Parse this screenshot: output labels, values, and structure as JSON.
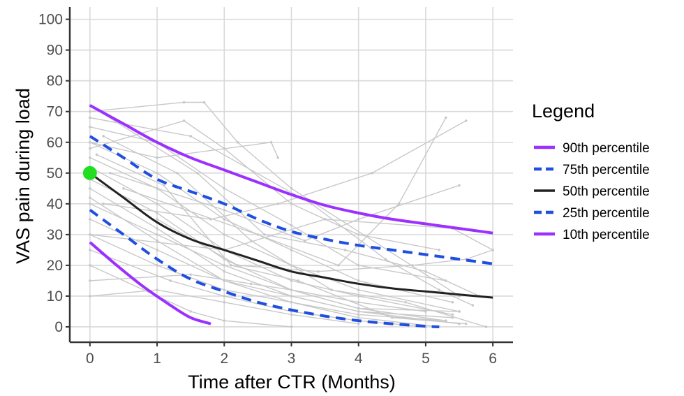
{
  "chart_data": {
    "type": "line",
    "title": "",
    "xlabel": "Time after CTR (Months)",
    "ylabel": "VAS pain during load",
    "xlim": [
      -0.3,
      6.3
    ],
    "ylim": [
      -5,
      104
    ],
    "xticks": [
      0,
      1,
      2,
      3,
      4,
      5,
      6
    ],
    "yticks": [
      0,
      10,
      20,
      30,
      40,
      50,
      60,
      70,
      80,
      90,
      100
    ],
    "grid": true,
    "legend": {
      "title": "Legend",
      "position": "right"
    },
    "start_point": {
      "x": 0,
      "y": 50,
      "color": "#22dd22"
    },
    "series": [
      {
        "name": "90th percentile",
        "color": "#9b30ff",
        "dash": "solid",
        "x": [
          0,
          0.5,
          1,
          1.5,
          2,
          2.5,
          3,
          3.5,
          4,
          4.5,
          5,
          5.5,
          6
        ],
        "y": [
          72,
          66,
          60,
          55,
          51,
          47,
          43,
          39.5,
          37,
          35,
          33.5,
          32,
          30.5
        ]
      },
      {
        "name": "75th percentile",
        "color": "#1f4fe0",
        "dash": "dashed",
        "x": [
          0,
          0.5,
          1,
          1.5,
          2,
          2.5,
          3,
          3.5,
          4,
          4.5,
          5,
          5.5,
          6
        ],
        "y": [
          62,
          55,
          48,
          44,
          40,
          35,
          31,
          28.5,
          26.5,
          25,
          23.5,
          22,
          20.5
        ]
      },
      {
        "name": "50th percentile",
        "color": "#222222",
        "dash": "solid",
        "x": [
          0,
          0.5,
          1,
          1.5,
          2,
          2.5,
          3,
          3.5,
          4,
          4.5,
          5,
          5.5,
          6
        ],
        "y": [
          50,
          42,
          34,
          28.5,
          25,
          21.5,
          18,
          16,
          14,
          12.5,
          11.5,
          10.5,
          9.5
        ]
      },
      {
        "name": "25th percentile",
        "color": "#1f4fe0",
        "dash": "dashed",
        "x": [
          0,
          0.5,
          1,
          1.5,
          2,
          2.5,
          3,
          3.5,
          4,
          4.5,
          5,
          5.2
        ],
        "y": [
          38,
          30,
          22,
          15.5,
          11.5,
          8,
          5.5,
          3.5,
          2,
          1,
          0.2,
          0
        ]
      },
      {
        "name": "10th percentile",
        "color": "#9b30ff",
        "dash": "solid",
        "x": [
          0,
          0.4,
          0.8,
          1.2,
          1.5,
          1.8
        ],
        "y": [
          27.5,
          20,
          13,
          7,
          3,
          1
        ]
      }
    ],
    "individual_trajectories": [
      [
        [
          0,
          70
        ],
        [
          1.4,
          73
        ],
        [
          1.7,
          73
        ],
        [
          2.2,
          60
        ],
        [
          3,
          45
        ],
        [
          5.5,
          10
        ]
      ],
      [
        [
          0,
          65
        ],
        [
          1,
          60
        ],
        [
          2,
          45
        ],
        [
          3,
          33
        ],
        [
          4,
          20
        ],
        [
          5.3,
          15
        ]
      ],
      [
        [
          0,
          60
        ],
        [
          1,
          50
        ],
        [
          2,
          35
        ],
        [
          3,
          25
        ],
        [
          4,
          15
        ],
        [
          5.4,
          8
        ]
      ],
      [
        [
          0,
          58
        ],
        [
          1.4,
          67
        ],
        [
          2,
          58
        ],
        [
          3,
          40
        ],
        [
          4,
          30
        ],
        [
          5.2,
          25
        ]
      ],
      [
        [
          0,
          55
        ],
        [
          1,
          45
        ],
        [
          2,
          30
        ],
        [
          3,
          20
        ],
        [
          4,
          12
        ],
        [
          5.5,
          5
        ]
      ],
      [
        [
          0,
          52
        ],
        [
          1,
          40
        ],
        [
          2,
          25
        ],
        [
          3,
          15
        ],
        [
          4,
          10
        ],
        [
          5.4,
          4
        ]
      ],
      [
        [
          0,
          48
        ],
        [
          1,
          37
        ],
        [
          2,
          22
        ],
        [
          3,
          12
        ],
        [
          4,
          6
        ],
        [
          5.3,
          2
        ]
      ],
      [
        [
          0,
          45
        ],
        [
          1,
          32
        ],
        [
          2,
          18
        ],
        [
          3,
          10
        ],
        [
          4,
          5
        ],
        [
          5.5,
          1
        ]
      ],
      [
        [
          0,
          42
        ],
        [
          1,
          28
        ],
        [
          2,
          15
        ],
        [
          3,
          8
        ],
        [
          4,
          3
        ],
        [
          5.2,
          0
        ]
      ],
      [
        [
          0,
          40
        ],
        [
          1,
          30
        ],
        [
          2,
          20
        ],
        [
          3,
          12
        ],
        [
          4,
          8
        ],
        [
          5,
          5
        ]
      ],
      [
        [
          0,
          35
        ],
        [
          1,
          25
        ],
        [
          2,
          15
        ],
        [
          3,
          10
        ],
        [
          4,
          5
        ],
        [
          5.4,
          3
        ]
      ],
      [
        [
          0,
          30
        ],
        [
          1,
          20
        ],
        [
          2,
          12
        ],
        [
          3,
          8
        ],
        [
          4,
          4
        ],
        [
          5.3,
          2
        ]
      ],
      [
        [
          0,
          25
        ],
        [
          1.2,
          15
        ],
        [
          2,
          10
        ],
        [
          3,
          5
        ],
        [
          4,
          2
        ],
        [
          5,
          0
        ]
      ],
      [
        [
          0,
          20
        ],
        [
          1,
          10
        ],
        [
          1.5,
          5
        ],
        [
          2,
          2
        ],
        [
          3,
          0
        ]
      ],
      [
        [
          0,
          15
        ],
        [
          1.5,
          17
        ],
        [
          2.4,
          14
        ],
        [
          3,
          12
        ],
        [
          4,
          6
        ],
        [
          5.5,
          5
        ]
      ],
      [
        [
          0,
          10
        ],
        [
          1,
          12
        ],
        [
          2,
          8
        ],
        [
          3,
          4
        ],
        [
          4,
          1
        ]
      ],
      [
        [
          0,
          60
        ],
        [
          1,
          55
        ],
        [
          2.7,
          60
        ],
        [
          2.8,
          55
        ]
      ],
      [
        [
          0.3,
          50
        ],
        [
          2,
          38
        ],
        [
          3.2,
          28
        ],
        [
          4,
          35
        ],
        [
          5.5,
          46
        ]
      ],
      [
        [
          0.5,
          45
        ],
        [
          2.5,
          30
        ],
        [
          3.7,
          20
        ],
        [
          4.6,
          40
        ],
        [
          5.3,
          68
        ]
      ],
      [
        [
          0.2,
          40
        ],
        [
          1.8,
          35
        ],
        [
          2.8,
          40
        ],
        [
          4.2,
          50
        ],
        [
          5.6,
          67
        ]
      ],
      [
        [
          0,
          30
        ],
        [
          2,
          25
        ],
        [
          3.5,
          35
        ],
        [
          5.4,
          32
        ],
        [
          6,
          25
        ]
      ],
      [
        [
          1,
          35
        ],
        [
          2.2,
          20
        ],
        [
          3.4,
          18
        ],
        [
          4.8,
          20
        ],
        [
          5.6,
          22
        ],
        [
          6,
          25
        ]
      ],
      [
        [
          0,
          68
        ],
        [
          1.5,
          62
        ],
        [
          3.3,
          40
        ],
        [
          4.4,
          22
        ],
        [
          5.2,
          12
        ],
        [
          5.7,
          7
        ]
      ],
      [
        [
          0,
          72
        ],
        [
          1.6,
          50
        ],
        [
          2.6,
          30
        ],
        [
          3.8,
          25
        ],
        [
          5,
          18
        ],
        [
          5.8,
          10
        ]
      ],
      [
        [
          0.1,
          56
        ],
        [
          1.1,
          46
        ],
        [
          2.1,
          20
        ],
        [
          3.1,
          15
        ],
        [
          4.5,
          3
        ],
        [
          5.6,
          1
        ]
      ],
      [
        [
          0.2,
          62
        ],
        [
          1.3,
          50
        ],
        [
          2.4,
          28
        ],
        [
          3.6,
          12
        ],
        [
          4.7,
          8
        ],
        [
          5.9,
          0
        ]
      ]
    ]
  },
  "colors": {
    "grid": "#d9d9d9",
    "axis": "#333333",
    "trajectory": "#c8c8c8"
  }
}
